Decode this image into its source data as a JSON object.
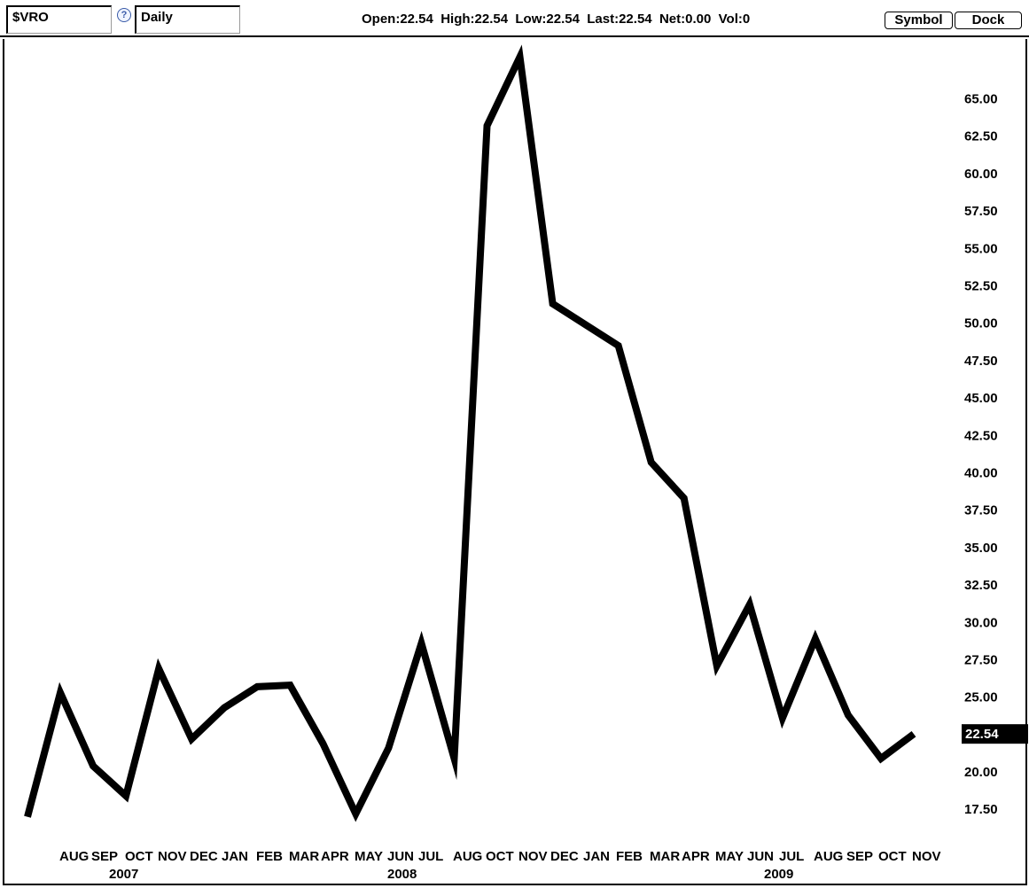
{
  "toolbar": {
    "symbol": "$VRO",
    "help": "?",
    "interval": "Daily",
    "quote": "Open:22.54  High:22.54  Low:22.54  Last:22.54  Net:0.00  Vol:0",
    "symbol_button": "Symbol",
    "dock_button": "Dock"
  },
  "chart_data": {
    "type": "line",
    "title": "",
    "xlabel": "",
    "ylabel": "",
    "line_color": "#000000",
    "last_label_bg": "#000000",
    "ylim": [
      15.5,
      69
    ],
    "yticks": [
      "17.50",
      "20.00",
      "22.50",
      "25.00",
      "27.50",
      "30.00",
      "32.50",
      "35.00",
      "37.50",
      "40.00",
      "42.50",
      "45.00",
      "47.50",
      "50.00",
      "52.50",
      "55.00",
      "57.50",
      "60.00",
      "62.50",
      "65.00"
    ],
    "last_value": "22.54",
    "series": [
      {
        "values": [
          17.0,
          25.3,
          20.4,
          18.4,
          26.9,
          22.2,
          24.3,
          25.7,
          25.8,
          21.9,
          17.2,
          21.6,
          28.6,
          20.9,
          63.2,
          67.8,
          51.3,
          49.9,
          48.5,
          40.7,
          38.3,
          27.1,
          31.2,
          23.6,
          28.9,
          23.8,
          20.9,
          22.54
        ]
      }
    ],
    "month_labels": [
      "AUG",
      "SEP",
      "OCT",
      "NOV",
      "DEC",
      "JAN",
      "FEB",
      "MAR",
      "APR",
      "MAY",
      "JUN",
      "JUL",
      "AUG",
      "OCT",
      "NOV",
      "DEC",
      "JAN",
      "FEB",
      "MAR",
      "APR",
      "MAY",
      "JUN",
      "JUL",
      "AUG",
      "SEP",
      "OCT",
      "NOV"
    ],
    "year_labels": [
      "2007",
      "2008",
      "2009"
    ]
  }
}
